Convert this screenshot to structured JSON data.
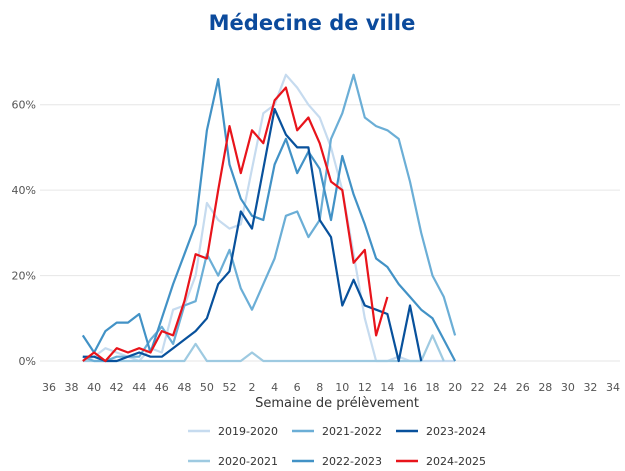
{
  "chart_data": {
    "type": "line",
    "title": "Médecine de ville",
    "x_label": "Semaine de prélèvement",
    "categories": [
      "36",
      null,
      "38",
      null,
      "40",
      null,
      "42",
      null,
      "44",
      null,
      "46",
      null,
      "48",
      null,
      "50",
      null,
      "52",
      null,
      "2",
      null,
      "4",
      null,
      "6",
      null,
      "8",
      null,
      "10",
      null,
      "12",
      null,
      "14",
      null,
      "16",
      null,
      "18",
      null,
      "20",
      null,
      "22",
      null,
      "24",
      null,
      "26",
      null,
      "28",
      null,
      "30",
      null,
      "32",
      null,
      "34"
    ],
    "ylim": [
      0,
      70
    ],
    "yticks": [
      {
        "value": 0,
        "label": "0%"
      },
      {
        "value": 20,
        "label": "20%"
      },
      {
        "value": 40,
        "label": "40%"
      },
      {
        "value": 60,
        "label": "60%"
      }
    ],
    "grid": true,
    "series": [
      {
        "name": "2019-2020",
        "color": "#c6dbef",
        "values": [
          null,
          null,
          null,
          0,
          1,
          3,
          2,
          1,
          0,
          3,
          2,
          12,
          13,
          20,
          37,
          33,
          31,
          32,
          45,
          58,
          60,
          67,
          64,
          60,
          57,
          50,
          40,
          25,
          10,
          0,
          0,
          1,
          0,
          0,
          0,
          0,
          0,
          null,
          null,
          null,
          null,
          null,
          null,
          null,
          null,
          null,
          null,
          null,
          null,
          null,
          null
        ]
      },
      {
        "name": "2020-2021",
        "color": "#9ecae1",
        "values": [
          null,
          null,
          null,
          0,
          0,
          0,
          0,
          0,
          0,
          0,
          0,
          0,
          0,
          4,
          0,
          0,
          0,
          0,
          2,
          0,
          0,
          0,
          0,
          0,
          0,
          0,
          0,
          0,
          0,
          0,
          0,
          0,
          0,
          0,
          6,
          0,
          null,
          null,
          null,
          null,
          null,
          null,
          null,
          null,
          null,
          null,
          null,
          null,
          null,
          null,
          null
        ]
      },
      {
        "name": "2021-2022",
        "color": "#6baed6",
        "values": [
          null,
          null,
          null,
          1,
          0,
          0,
          1,
          1,
          1,
          5,
          8,
          4,
          13,
          14,
          25,
          20,
          26,
          17,
          12,
          18,
          24,
          34,
          35,
          29,
          33,
          52,
          58,
          67,
          57,
          55,
          54,
          52,
          42,
          30,
          20,
          15,
          6,
          null,
          null,
          null,
          null,
          null,
          null,
          null,
          null,
          null,
          null,
          null,
          null,
          null,
          null
        ]
      },
      {
        "name": "2022-2023",
        "color": "#4292c6",
        "values": [
          null,
          null,
          null,
          6,
          2,
          7,
          9,
          9,
          11,
          2,
          10,
          18,
          25,
          32,
          54,
          66,
          46,
          38,
          34,
          33,
          46,
          52,
          44,
          49,
          45,
          33,
          48,
          39,
          32,
          24,
          22,
          18,
          15,
          12,
          10,
          5,
          0,
          null,
          null,
          null,
          null,
          null,
          null,
          null,
          null,
          null,
          null,
          null,
          null,
          null,
          null
        ]
      },
      {
        "name": "2023-2024",
        "color": "#08519c",
        "values": [
          null,
          null,
          null,
          1,
          1,
          0,
          0,
          1,
          2,
          1,
          1,
          3,
          5,
          7,
          10,
          18,
          21,
          35,
          31,
          45,
          59,
          53,
          50,
          50,
          33,
          29,
          13,
          19,
          13,
          12,
          11,
          0,
          13,
          0,
          null,
          null,
          null,
          null,
          null,
          null,
          null,
          null,
          null,
          null,
          null,
          null,
          null,
          null,
          null,
          null,
          null
        ]
      },
      {
        "name": "2024-2025",
        "color": "#e8141b",
        "values": [
          null,
          null,
          null,
          0,
          2,
          0,
          3,
          2,
          3,
          2,
          7,
          6,
          14,
          25,
          24,
          40,
          55,
          44,
          54,
          51,
          61,
          64,
          54,
          57,
          51,
          42,
          40,
          23,
          26,
          6,
          15,
          null,
          null,
          null,
          null,
          null,
          null,
          null,
          null,
          null,
          null,
          null,
          null,
          null,
          null,
          null,
          null,
          null,
          null,
          null,
          null
        ]
      }
    ]
  }
}
